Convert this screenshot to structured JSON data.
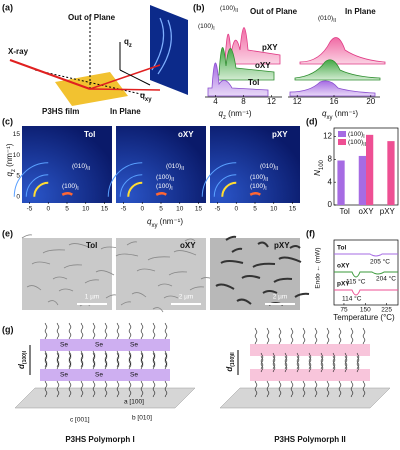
{
  "figure": {
    "a": {
      "label": "(a)",
      "out_of_plane": "Out of Plane",
      "xray": "X-ray",
      "film": "P3HS film",
      "in_plane": "In Plane",
      "qz": {
        "text": "q",
        "sub": "z"
      },
      "qxy": {
        "text": "q",
        "sub": "xy"
      }
    },
    "b": {
      "label": "(b)",
      "left_title": "Out of Plane",
      "right_title": "In Plane",
      "peak1": {
        "text": "(100)",
        "sub": "I"
      },
      "peak2": {
        "text": "(100)",
        "sub": "II"
      },
      "peak3": {
        "text": "(010)",
        "sub": "II"
      },
      "samples": [
        "pXY",
        "oXY",
        "Tol"
      ],
      "left_axis": {
        "text": "q",
        "sub": "z",
        "unit": " (nm⁻¹)",
        "xlim": [
          2.5,
          13.5
        ],
        "xticks": [
          4,
          8,
          12
        ]
      },
      "right_axis": {
        "text": "q",
        "sub": "xy",
        "unit": " (nm⁻¹)",
        "xlim": [
          11,
          21
        ],
        "xticks": [
          12,
          16,
          20
        ]
      }
    },
    "c": {
      "label": "(c)",
      "samples": [
        "Tol",
        "oXY",
        "pXY"
      ],
      "ylabel": {
        "text": "q",
        "sub": "z",
        "unit": " (nm⁻¹)"
      },
      "ylim": [
        -1.5,
        17
      ],
      "yticks": [
        15,
        10,
        5,
        0
      ],
      "xlabel": {
        "text": "q",
        "sub": "xy",
        "unit": " (nm⁻¹)"
      },
      "xlim": [
        -7,
        17
      ],
      "xticks": [
        -5,
        0,
        5,
        10,
        15
      ],
      "p010": {
        "text": "(010)",
        "sub": "II"
      },
      "p100a": {
        "text": "(100)",
        "sub": "I"
      },
      "p100b": {
        "text": "(100)",
        "sub": "II"
      }
    },
    "d": {
      "label": "(d)",
      "type": "bar",
      "ylabel": {
        "text": "N",
        "sub": "100"
      },
      "categories": [
        "Tol",
        "oXY",
        "pXY"
      ],
      "series": [
        {
          "name": {
            "text": "(100)",
            "sub": "I"
          },
          "color": "#a66be3",
          "values": [
            7.8,
            8.6,
            null
          ]
        },
        {
          "name": {
            "text": "(100)",
            "sub": "II"
          },
          "color": "#ee4f93",
          "values": [
            null,
            12.3,
            11.2
          ]
        }
      ],
      "ylim": [
        0,
        13.5
      ],
      "yticks": [
        0,
        4,
        8,
        12
      ],
      "legend": "upper-left"
    },
    "e": {
      "label": "(e)",
      "samples": [
        "Tol",
        "oXY",
        "pXY"
      ],
      "scales": [
        "1 µm",
        "2 µm",
        "2 µm"
      ]
    },
    "f": {
      "label": "(f)",
      "samples": [
        "Tol",
        "oXY",
        "pXY"
      ],
      "t1": "205 °C",
      "t2": "115 °C",
      "t3": "204 °C",
      "t4": "114 °C",
      "ylabel": "Endo ← (mW)",
      "xlabel": "Temperature (°C)",
      "xlim": [
        40,
        265
      ],
      "xticks": [
        75,
        150,
        225
      ]
    },
    "g": {
      "label": "(g)",
      "monomer": "Se",
      "poly1": "P3HS Polymorph I",
      "poly2": "P3HS Polymorph II",
      "d1": {
        "text": "d",
        "sub": "(100)I"
      },
      "d2": {
        "text": "d",
        "sub": "(100)II"
      },
      "ax_a": "a [100]",
      "ax_b": "b [010]",
      "ax_c": "c [001]"
    }
  }
}
